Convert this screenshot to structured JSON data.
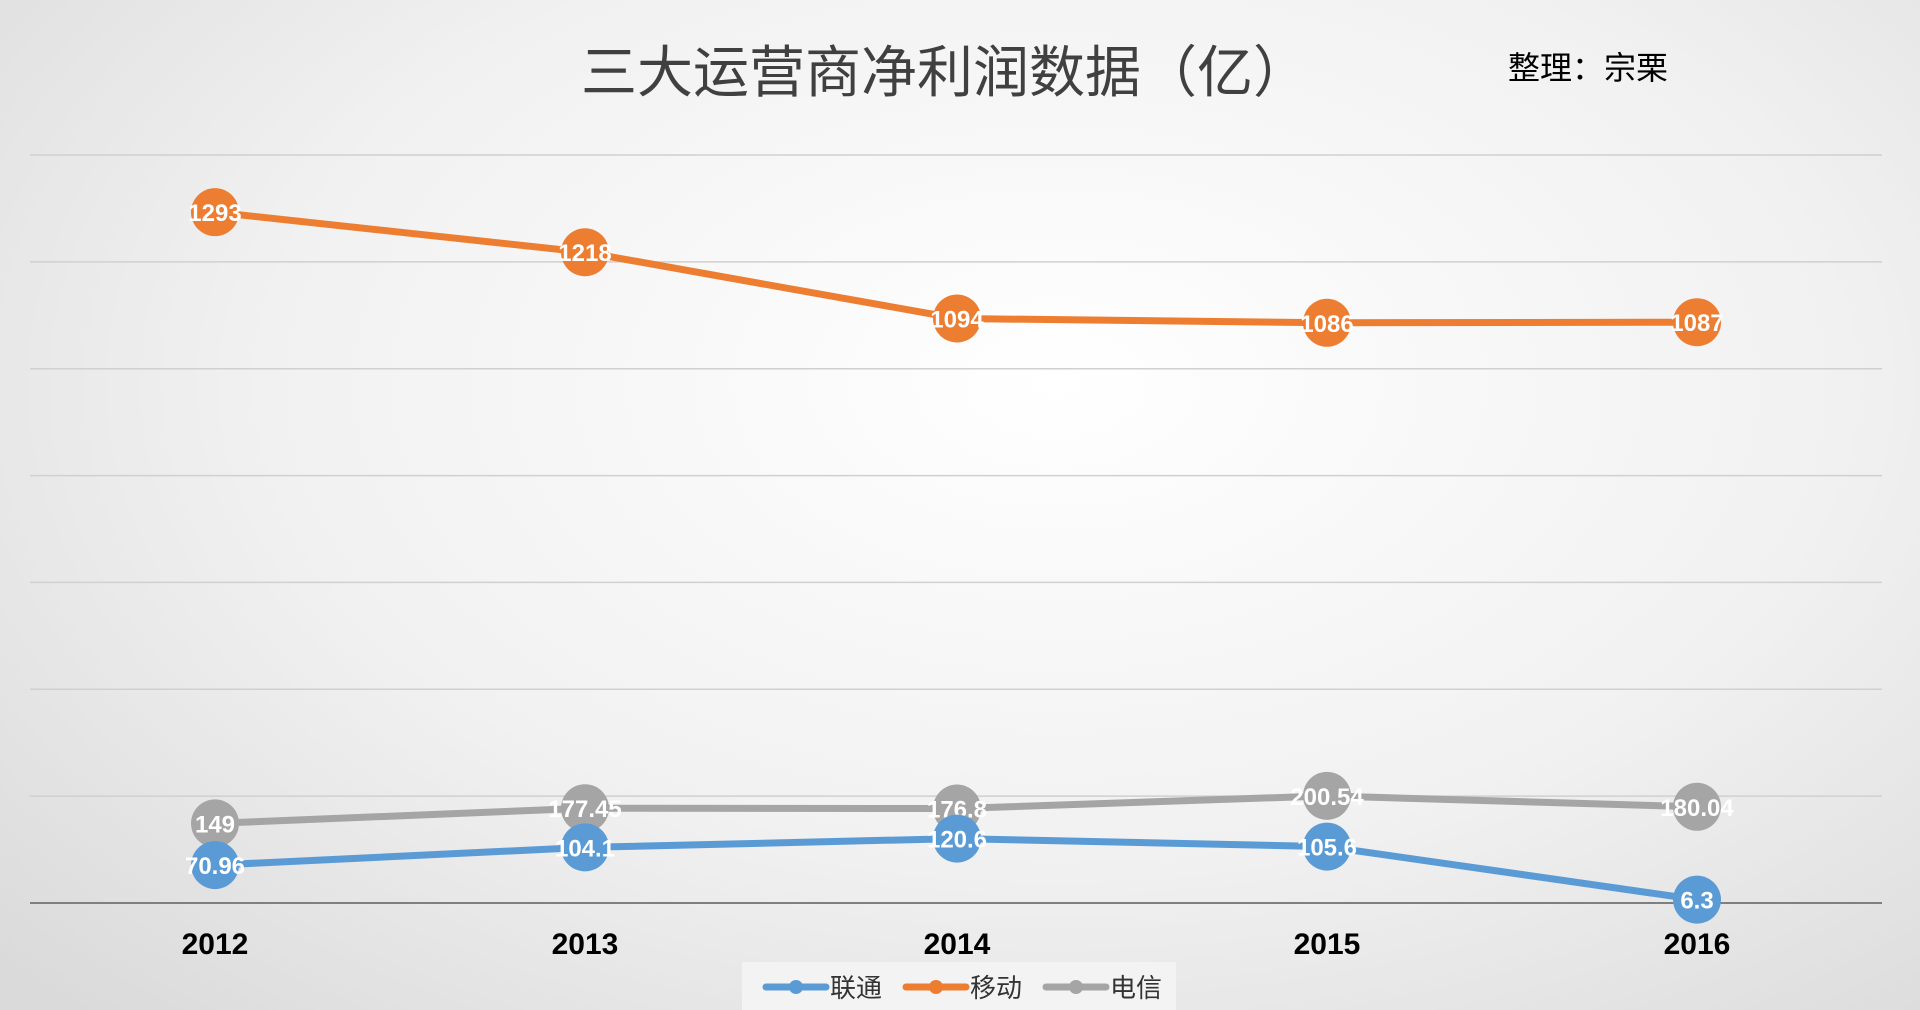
{
  "chart_data": {
    "type": "line",
    "title": "三大运营商净利润数据（亿）",
    "note": "整理：宗栗",
    "x": [
      "2012",
      "2013",
      "2014",
      "2015",
      "2016"
    ],
    "series": [
      {
        "name": "联通",
        "color": "#5b9bd5",
        "values": [
          70.96,
          104.1,
          120.6,
          105.6,
          6.3
        ],
        "labels": [
          "70.96",
          "104.1",
          "120.6",
          "105.6",
          "6.3"
        ]
      },
      {
        "name": "移动",
        "color": "#ed7d31",
        "values": [
          1293,
          1218,
          1094,
          1086,
          1087
        ],
        "labels": [
          "1293",
          "1218",
          "1094",
          "1086",
          "1087"
        ]
      },
      {
        "name": "电信",
        "color": "#a5a5a5",
        "values": [
          149,
          177.45,
          176.8,
          200.54,
          180.04
        ],
        "labels": [
          "149",
          "177.45",
          "176.8",
          "200.54",
          "180.04"
        ]
      }
    ],
    "ylim": [
      0,
      1400
    ],
    "grid": true,
    "legend": "bottom",
    "data_labels": true
  }
}
